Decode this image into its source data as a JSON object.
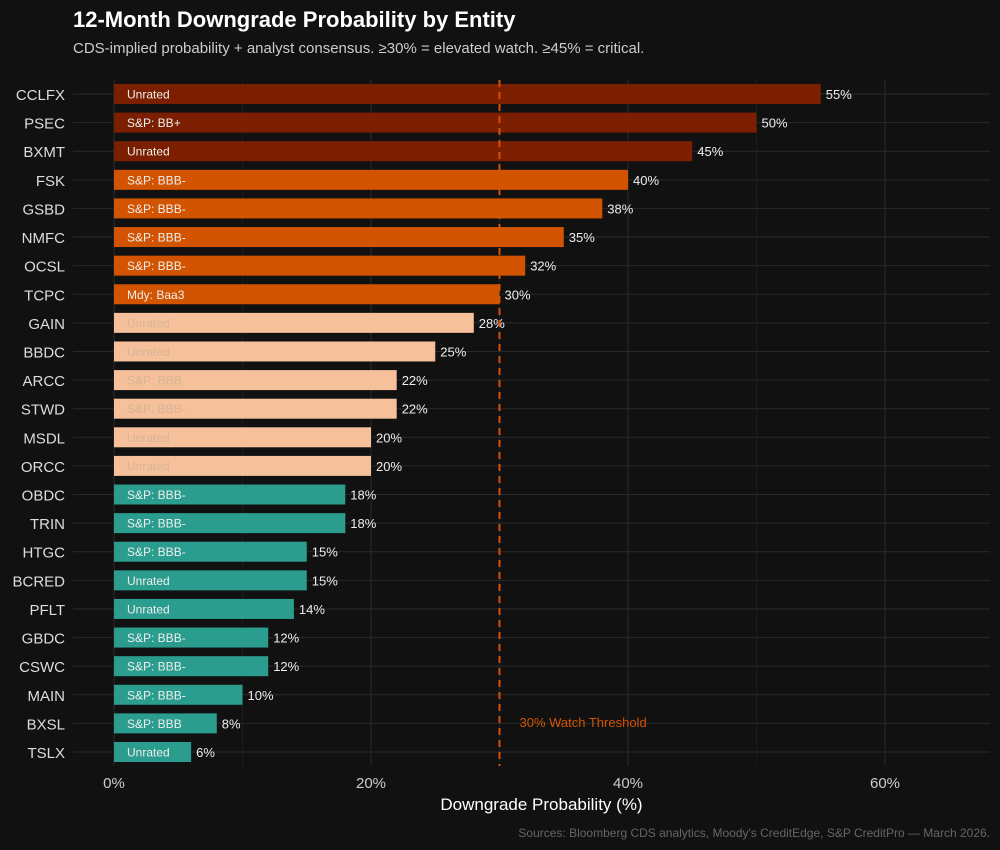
{
  "chart_data": {
    "type": "bar",
    "orientation": "horizontal",
    "title": "12-Month Downgrade Probability by Entity",
    "subtitle": "CDS-implied probability + analyst consensus. ≥30% = elevated watch. ≥45% = critical.",
    "caption": "Sources: Bloomberg CDS analytics, Moody's CreditEdge, S&P CreditPro — March 2026.",
    "xlabel": "Downgrade Probability (%)",
    "ylabel": "",
    "xlim": [
      0,
      68
    ],
    "xticks": [
      0,
      20,
      40,
      60
    ],
    "xtick_labels": [
      "0%",
      "20%",
      "40%",
      "60%"
    ],
    "grid": true,
    "threshold": {
      "value": 30,
      "label": "30% Watch Threshold",
      "color": "#d35400"
    },
    "colors": {
      "critical": "#7b1f00",
      "elevated": "#d35400",
      "moderate": "#f5c09a",
      "low": "#2a9d8f"
    },
    "categories": [
      "CCLFX",
      "PSEC",
      "BXMT",
      "FSK",
      "GSBD",
      "NMFC",
      "OCSL",
      "TCPC",
      "GAIN",
      "BBDC",
      "ARCC",
      "STWD",
      "MSDL",
      "ORCC",
      "OBDC",
      "TRIN",
      "HTGC",
      "BCRED",
      "PFLT",
      "GBDC",
      "CSWC",
      "MAIN",
      "BXSL",
      "TSLX"
    ],
    "values": [
      55,
      50,
      45,
      40,
      38,
      35,
      32,
      30,
      28,
      25,
      22,
      22,
      20,
      20,
      18,
      18,
      15,
      15,
      14,
      12,
      12,
      10,
      8,
      6
    ],
    "value_labels": [
      "55%",
      "50%",
      "45%",
      "40%",
      "38%",
      "35%",
      "32%",
      "30%",
      "28%",
      "25%",
      "22%",
      "22%",
      "20%",
      "20%",
      "18%",
      "18%",
      "15%",
      "15%",
      "14%",
      "12%",
      "12%",
      "10%",
      "8%",
      "6%"
    ],
    "ratings": [
      "Unrated",
      "S&P: BB+",
      "Unrated",
      "S&P: BBB-",
      "S&P: BBB-",
      "S&P: BBB-",
      "S&P: BBB-",
      "Mdy: Baa3",
      "Unrated",
      "Unrated",
      "S&P: BBB",
      "S&P: BBB-",
      "Unrated",
      "Unrated",
      "S&P: BBB-",
      "S&P: BBB-",
      "S&P: BBB-",
      "Unrated",
      "Unrated",
      "S&P: BBB-",
      "S&P: BBB-",
      "S&P: BBB-",
      "S&P: BBB",
      "Unrated"
    ]
  }
}
